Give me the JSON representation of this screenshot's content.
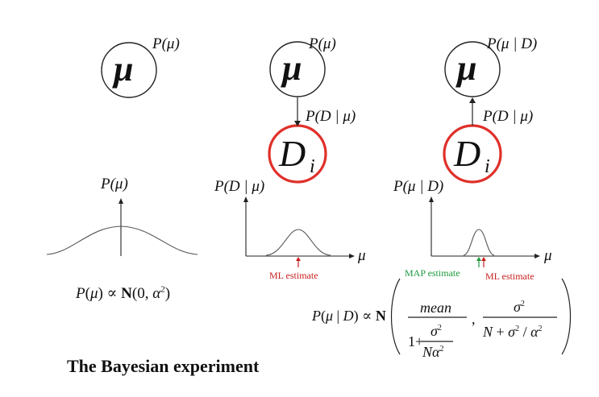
{
  "labels": {
    "p_mu": "P(μ)",
    "p_d_given_mu": "P(D | μ)",
    "p_mu_given_d": "P(μ | D)",
    "node_mu": "μ",
    "node_d": "D",
    "node_d_sub": "i",
    "axis_mu": "μ"
  },
  "annotations": {
    "ml_estimate": "ML estimate",
    "map_estimate": "MAP estimate"
  },
  "formulas": {
    "prior": "P(μ) ∝ N(0, α²)",
    "posterior": "P(μ | D) ∝ N( mean / (1 + σ²/(Nα²)) , σ² / (N + σ²/α²) )"
  },
  "title": "The Bayesian experiment",
  "colors": {
    "red": "#c8201e",
    "green": "#1e9a3e",
    "ink": "#111111"
  }
}
